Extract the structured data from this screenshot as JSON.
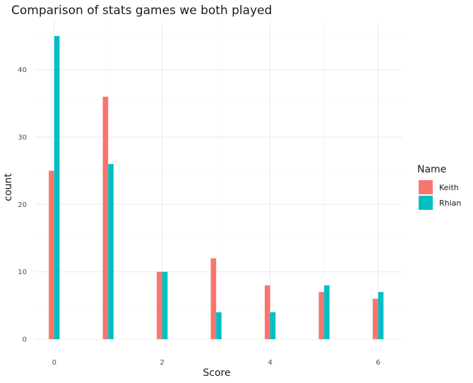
{
  "chart_data": {
    "type": "bar",
    "title": "Comparison of stats games we both played",
    "xlabel": "Score",
    "ylabel": "count",
    "x": [
      0,
      1,
      2,
      3,
      4,
      5,
      6
    ],
    "x_ticks": [
      0,
      2,
      4,
      6
    ],
    "y_ticks": [
      0,
      10,
      20,
      30,
      40
    ],
    "xlim": [
      -0.35,
      6.45
    ],
    "ylim": [
      0,
      47.2
    ],
    "grid": true,
    "legend": {
      "title": "Name",
      "position": "right"
    },
    "series": [
      {
        "name": "Keith",
        "color": "#F8766D",
        "values": [
          25,
          36,
          10,
          12,
          8,
          7,
          6
        ]
      },
      {
        "name": "Rhian",
        "color": "#00BFC4",
        "values": [
          45,
          26,
          10,
          4,
          4,
          8,
          7
        ]
      }
    ]
  }
}
